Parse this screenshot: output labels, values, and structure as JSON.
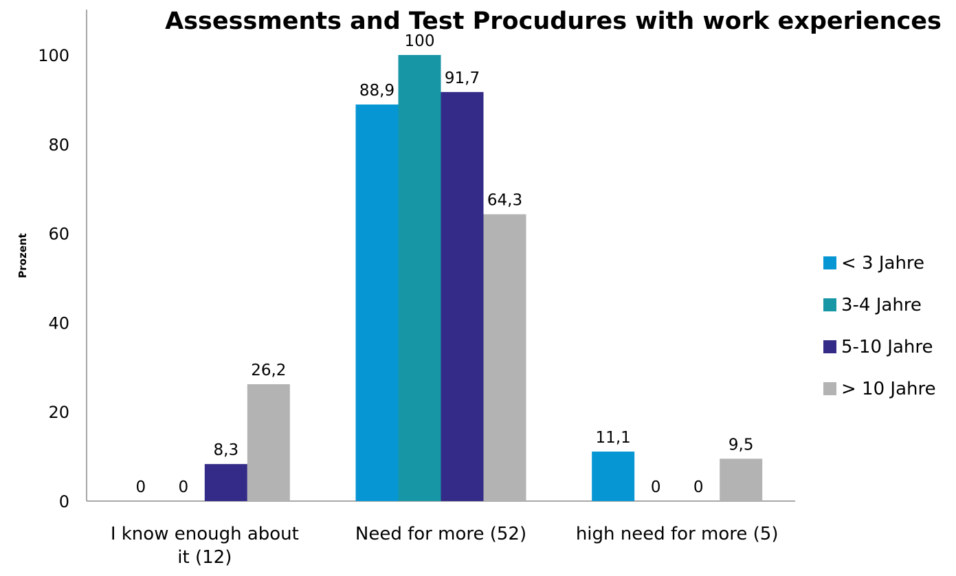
{
  "chart_data": {
    "type": "bar",
    "title": "Assessments and Test Procudures with work experiences",
    "xlabel": "",
    "ylabel": "Prozent",
    "ylim": [
      0,
      100
    ],
    "yticks": [
      "0",
      "20",
      "40",
      "60",
      "80",
      "100"
    ],
    "categories": [
      "I know enough about it (12)",
      "Need for more (52)",
      "high need for more (5)"
    ],
    "category_lines": [
      [
        "I know enough about",
        "it (12)"
      ],
      [
        "Need for more (52)"
      ],
      [
        "high need for more (5)"
      ]
    ],
    "series": [
      {
        "name": "< 3 Jahre",
        "color": "#0796D4",
        "values": [
          0,
          88.9,
          11.1
        ],
        "labels": [
          "0",
          "88,9",
          "11,1"
        ]
      },
      {
        "name": "3-4 Jahre",
        "color": "#1796A5",
        "values": [
          0,
          100,
          0
        ],
        "labels": [
          "0",
          "100",
          "0"
        ]
      },
      {
        "name": "5-10 Jahre",
        "color": "#342A87",
        "values": [
          8.3,
          91.7,
          0
        ],
        "labels": [
          "8,3",
          "91,7",
          "0"
        ]
      },
      {
        "name": "> 10 Jahre",
        "color": "#B3B3B3",
        "values": [
          26.2,
          64.3,
          9.5
        ],
        "labels": [
          "26,2",
          "64,3",
          "9,5"
        ]
      }
    ],
    "legend_position": "right",
    "grid": false
  }
}
